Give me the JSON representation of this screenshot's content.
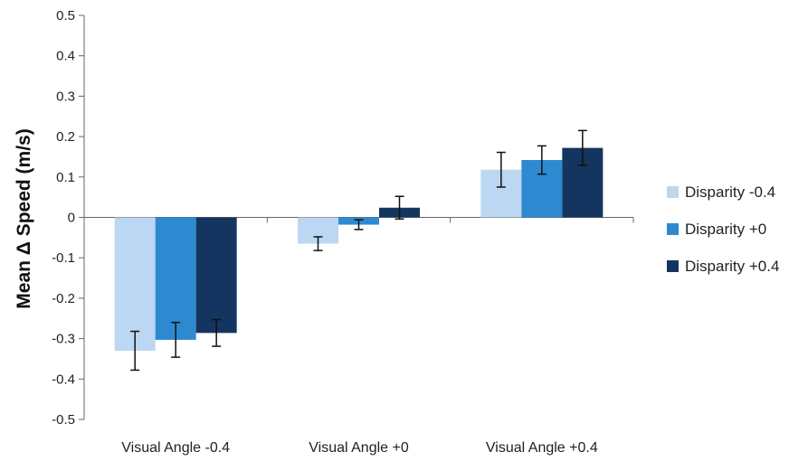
{
  "chart_data": {
    "type": "bar",
    "title": "",
    "xlabel": "",
    "ylabel": "Mean Δ Speed (m/s)",
    "ylim": [
      -0.5,
      0.5
    ],
    "yticks": [
      "0.5",
      "0.4",
      "0.3",
      "0.2",
      "0.1",
      "0",
      "-0.1",
      "-0.2",
      "-0.3",
      "-0.4",
      "-0.5"
    ],
    "categories": [
      "Visual Angle -0.4",
      "Visual Angle +0",
      "Visual Angle +0.4"
    ],
    "series": [
      {
        "name": "Disparity -0.4",
        "color": "#bcd7f1",
        "values": [
          -0.33,
          -0.065,
          0.118
        ],
        "errors": [
          0.048,
          0.017,
          0.043
        ]
      },
      {
        "name": "Disparity +0",
        "color": "#2d8ad0",
        "values": [
          -0.303,
          -0.018,
          0.142
        ],
        "errors": [
          0.043,
          0.012,
          0.035
        ]
      },
      {
        "name": "Disparity +0.4",
        "color": "#13355f",
        "values": [
          -0.286,
          0.024,
          0.172
        ],
        "errors": [
          0.033,
          0.028,
          0.043
        ]
      }
    ],
    "grid": false,
    "legend": "right"
  }
}
